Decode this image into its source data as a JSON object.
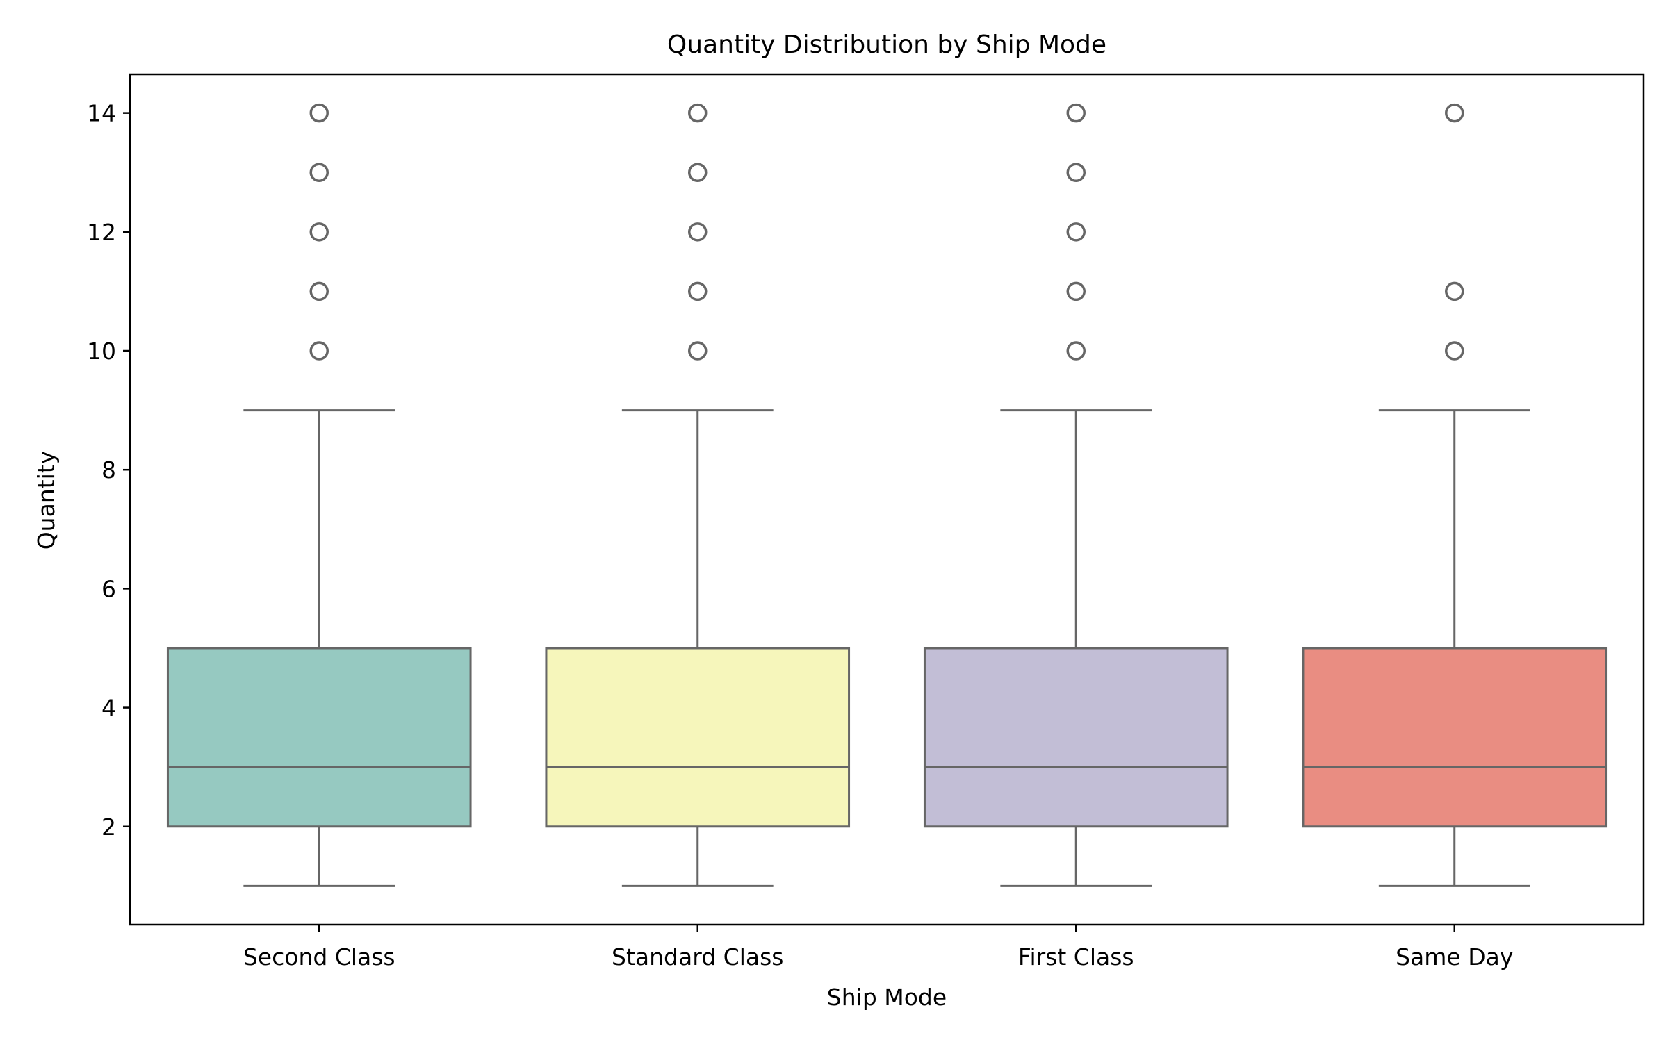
{
  "chart_data": {
    "type": "box",
    "title": "Quantity Distribution by Ship Mode",
    "xlabel": "Ship Mode",
    "ylabel": "Quantity",
    "ylim": [
      0.35,
      14.65
    ],
    "yticks": [
      2,
      4,
      6,
      8,
      10,
      12,
      14
    ],
    "grid": false,
    "categories": [
      "Second Class",
      "Standard Class",
      "First Class",
      "Same Day"
    ],
    "boxes": [
      {
        "category": "Second Class",
        "color": "#96c9c1",
        "whisker_low": 1,
        "q1": 2,
        "median": 3,
        "q3": 5,
        "whisker_high": 9,
        "outliers": [
          10,
          11,
          12,
          13,
          14
        ]
      },
      {
        "category": "Standard Class",
        "color": "#f6f6bb",
        "whisker_low": 1,
        "q1": 2,
        "median": 3,
        "q3": 5,
        "whisker_high": 9,
        "outliers": [
          10,
          11,
          12,
          13,
          14
        ]
      },
      {
        "category": "First Class",
        "color": "#c2bed6",
        "whisker_low": 1,
        "q1": 2,
        "median": 3,
        "q3": 5,
        "whisker_high": 9,
        "outliers": [
          10,
          11,
          12,
          13,
          14
        ]
      },
      {
        "category": "Same Day",
        "color": "#e98d82",
        "whisker_low": 1,
        "q1": 2,
        "median": 3,
        "q3": 5,
        "whisker_high": 9,
        "outliers": [
          10,
          11,
          14
        ]
      }
    ]
  }
}
